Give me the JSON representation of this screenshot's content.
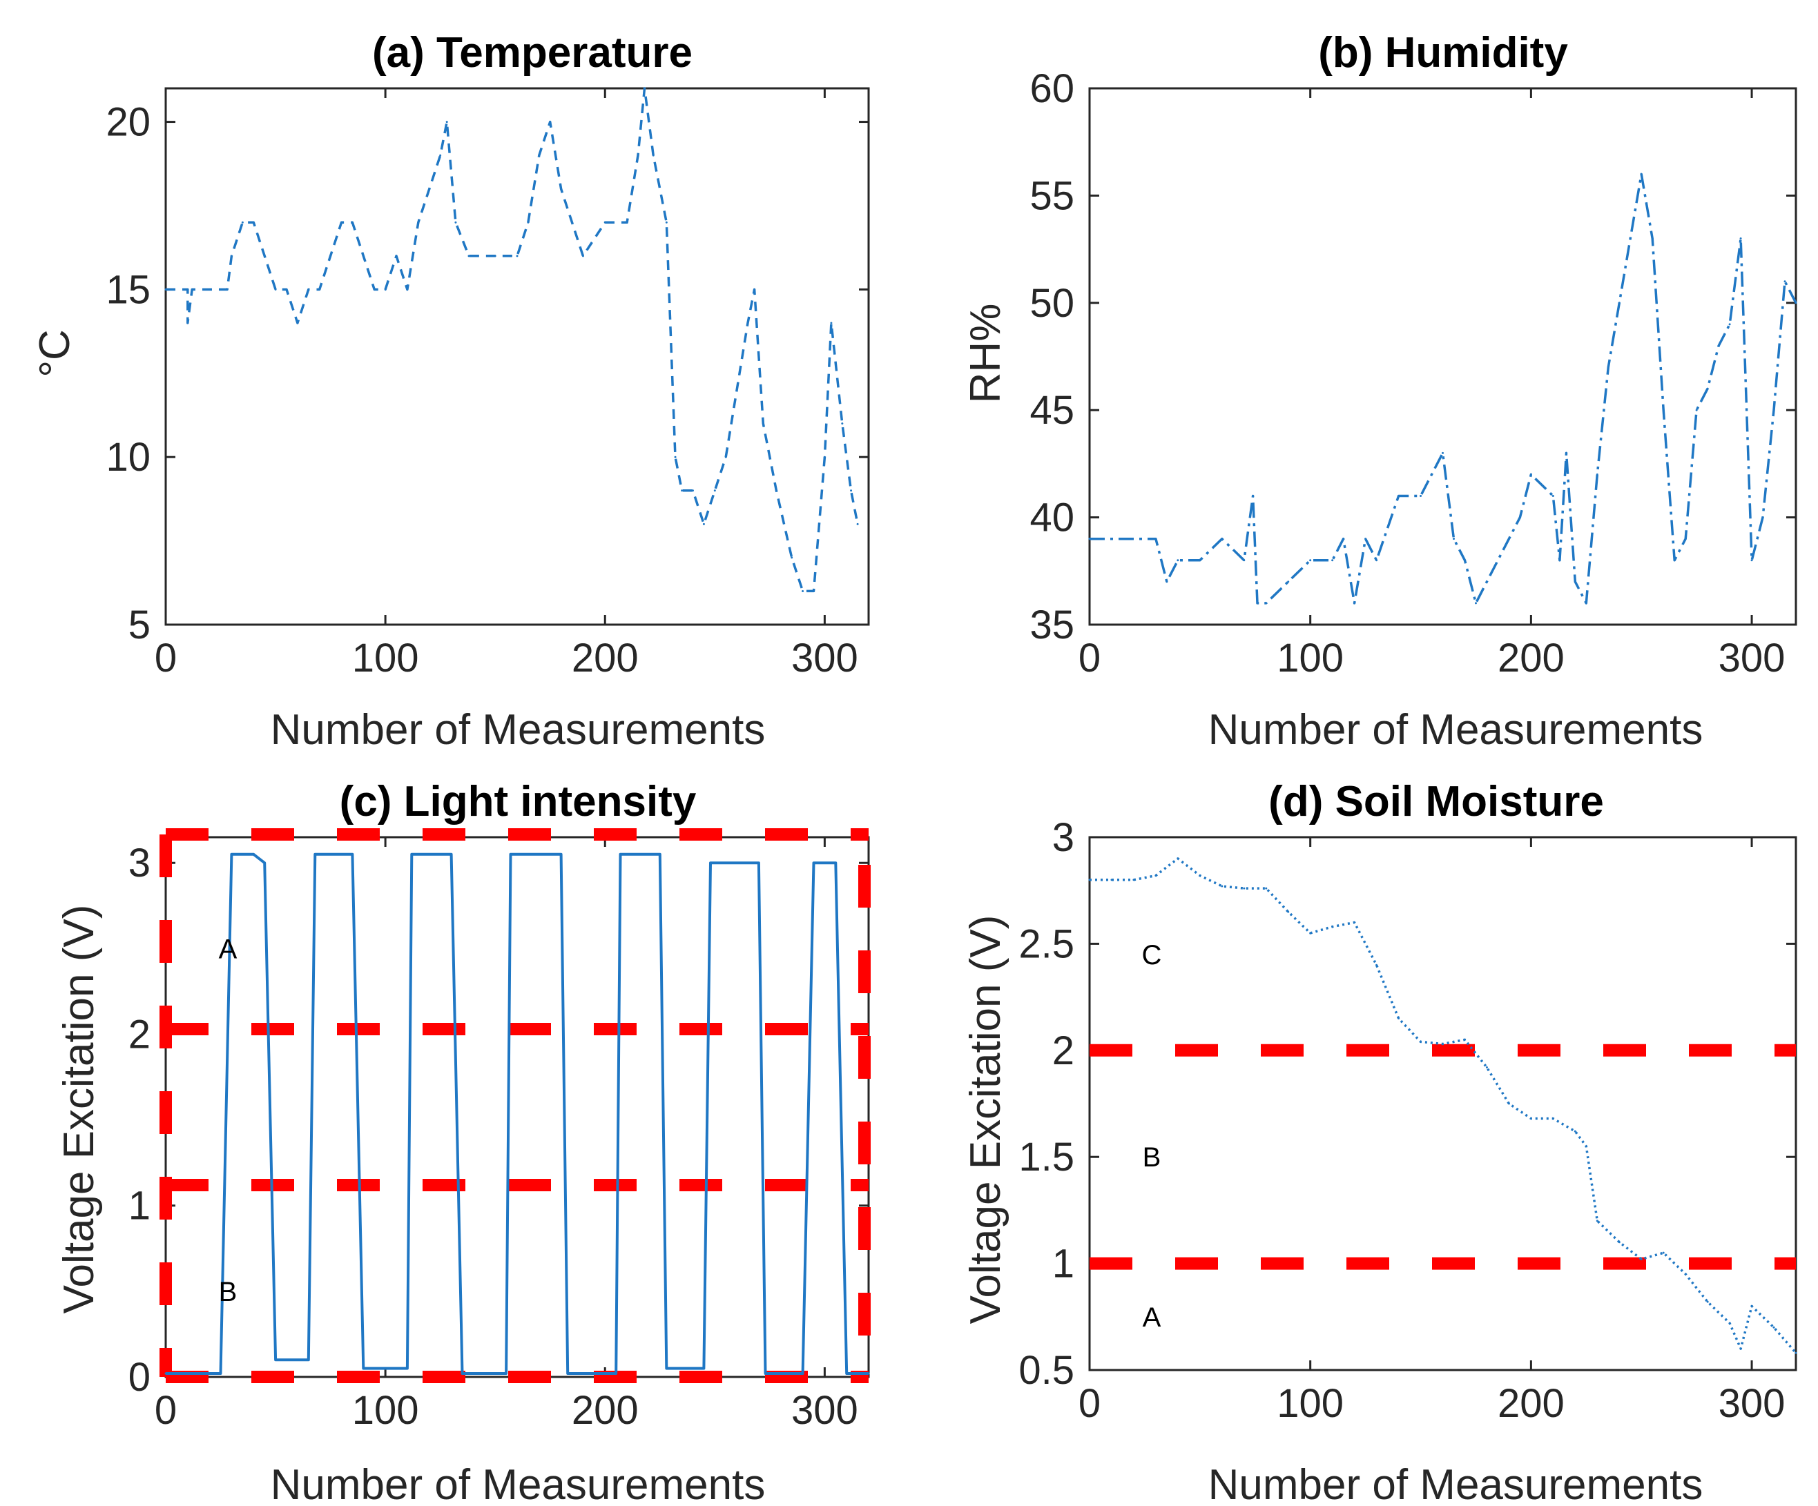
{
  "figure_colors": {
    "line": "#1f77c4",
    "region_lines": "#ff0000",
    "axes": "#262626"
  },
  "chart_data": [
    {
      "id": "a",
      "type": "line",
      "title": "(a) Temperature",
      "xlabel": "Number of Measurements",
      "ylabel": "°C",
      "xlim": [
        0,
        320
      ],
      "ylim": [
        5,
        21
      ],
      "xticks": [
        0,
        100,
        200,
        300
      ],
      "yticks": [
        5,
        10,
        15,
        20
      ],
      "grid": false,
      "line_style": "dashed",
      "x": [
        0,
        10,
        10,
        12,
        20,
        28,
        30,
        35,
        40,
        45,
        50,
        55,
        60,
        65,
        70,
        75,
        80,
        85,
        90,
        95,
        100,
        105,
        110,
        115,
        120,
        125,
        128,
        132,
        138,
        150,
        160,
        165,
        170,
        175,
        180,
        190,
        200,
        210,
        215,
        218,
        222,
        228,
        232,
        235,
        240,
        245,
        250,
        255,
        260,
        265,
        268,
        272,
        278,
        285,
        290,
        295,
        300,
        303,
        308,
        312,
        315
      ],
      "y": [
        15,
        15,
        14,
        15,
        15,
        15,
        16,
        17,
        17,
        16,
        15,
        15,
        14,
        15,
        15,
        16,
        17,
        17,
        16,
        15,
        15,
        16,
        15,
        17,
        18,
        19,
        20,
        17,
        16,
        16,
        16,
        17,
        19,
        20,
        18,
        16,
        17,
        17,
        19,
        21,
        19,
        17,
        10,
        9,
        9,
        8,
        9,
        10,
        12,
        14,
        15,
        11,
        9,
        7,
        6,
        6,
        10,
        14,
        11,
        9,
        8
      ]
    },
    {
      "id": "b",
      "type": "line",
      "title": "(b) Humidity",
      "xlabel": "Number of Measurements",
      "ylabel": "RH%",
      "xlim": [
        0,
        320
      ],
      "ylim": [
        35,
        60
      ],
      "xticks": [
        0,
        100,
        200,
        300
      ],
      "yticks": [
        35,
        40,
        45,
        50,
        55,
        60
      ],
      "grid": false,
      "line_style": "dash-dot",
      "x": [
        0,
        30,
        35,
        40,
        50,
        60,
        70,
        74,
        76,
        80,
        90,
        100,
        110,
        115,
        120,
        125,
        130,
        140,
        150,
        155,
        160,
        165,
        170,
        175,
        180,
        190,
        195,
        200,
        210,
        213,
        216,
        220,
        225,
        230,
        235,
        240,
        245,
        250,
        255,
        260,
        265,
        270,
        275,
        280,
        285,
        290,
        295,
        300,
        305,
        310,
        315,
        320
      ],
      "y": [
        39,
        39,
        37,
        38,
        38,
        39,
        38,
        41,
        36,
        36,
        37,
        38,
        38,
        39,
        36,
        39,
        38,
        41,
        41,
        42,
        43,
        39,
        38,
        36,
        37,
        39,
        40,
        42,
        41,
        38,
        43,
        37,
        36,
        42,
        47,
        50,
        53,
        56,
        53,
        45,
        38,
        39,
        45,
        46,
        48,
        49,
        53,
        38,
        40,
        45,
        51,
        50
      ]
    },
    {
      "id": "c",
      "type": "line",
      "title": "(c) Light intensity",
      "xlabel": "Number of Measurements",
      "ylabel": "Voltage Excitation (V)",
      "xlim": [
        0,
        320
      ],
      "ylim": [
        0,
        3.15
      ],
      "xticks": [
        0,
        100,
        200,
        300
      ],
      "yticks": [
        0,
        1,
        2,
        3
      ],
      "grid": false,
      "line_style": "solid",
      "x": [
        0,
        25,
        30,
        40,
        45,
        50,
        65,
        68,
        85,
        90,
        110,
        112,
        130,
        135,
        155,
        157,
        180,
        183,
        205,
        207,
        225,
        228,
        245,
        248,
        270,
        273,
        290,
        295,
        305,
        310,
        320
      ],
      "y": [
        0.02,
        0.02,
        3.05,
        3.05,
        3.0,
        0.1,
        0.1,
        3.05,
        3.05,
        0.05,
        0.05,
        3.05,
        3.05,
        0.02,
        0.02,
        3.05,
        3.05,
        0.02,
        0.02,
        3.05,
        3.05,
        0.05,
        0.05,
        3.0,
        3.0,
        0.02,
        0.02,
        3.0,
        3.0,
        0.02,
        0.02
      ],
      "regions": [
        {
          "label": "A",
          "y": 2.5
        },
        {
          "label": "B",
          "y": 0.5
        }
      ],
      "region_lines_y": [
        2.03,
        1.12
      ]
    },
    {
      "id": "d",
      "type": "line",
      "title": "(d) Soil Moisture",
      "xlabel": "Number of Measurements",
      "ylabel": "Voltage Excitation (V)",
      "xlim": [
        0,
        320
      ],
      "ylim": [
        0.5,
        3
      ],
      "xticks": [
        0,
        100,
        200,
        300
      ],
      "yticks": [
        0.5,
        1,
        1.5,
        2,
        2.5,
        3
      ],
      "ytick_labels": [
        "0.5",
        "1",
        "1.5",
        "2",
        "2.5",
        "3"
      ],
      "grid": false,
      "line_style": "dotted",
      "x": [
        0,
        10,
        20,
        30,
        40,
        50,
        60,
        70,
        80,
        90,
        100,
        110,
        120,
        130,
        140,
        150,
        160,
        170,
        180,
        190,
        200,
        210,
        220,
        225,
        230,
        240,
        250,
        260,
        270,
        280,
        290,
        295,
        300,
        310,
        320
      ],
      "y": [
        2.8,
        2.8,
        2.8,
        2.82,
        2.9,
        2.82,
        2.77,
        2.76,
        2.76,
        2.65,
        2.55,
        2.58,
        2.6,
        2.4,
        2.15,
        2.04,
        2.03,
        2.05,
        1.92,
        1.75,
        1.68,
        1.68,
        1.62,
        1.55,
        1.2,
        1.1,
        1.02,
        1.05,
        0.95,
        0.82,
        0.72,
        0.6,
        0.8,
        0.7,
        0.58
      ],
      "regions": [
        {
          "label": "C",
          "y": 2.45
        },
        {
          "label": "B",
          "y": 1.5
        },
        {
          "label": "A",
          "y": 0.75
        }
      ],
      "region_lines_y": [
        2.0,
        1.0
      ]
    }
  ]
}
